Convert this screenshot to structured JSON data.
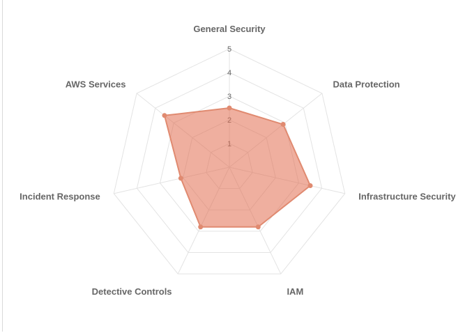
{
  "chart_data": {
    "type": "radar",
    "axes": [
      "General Security",
      "Data Protection",
      "Infrastructure Security",
      "IAM",
      "Detective Controls",
      "Incident Response",
      "AWS Services"
    ],
    "series": [
      {
        "values": [
          2.5,
          2.9,
          3.5,
          2.8,
          2.8,
          2.1,
          3.5
        ]
      }
    ],
    "rlim": [
      0,
      5
    ],
    "ticks": [
      1,
      2,
      3,
      4,
      5
    ],
    "colors": {
      "fill": "rgba(226,110,80,0.55)",
      "stroke": "#e08a70",
      "grid": "#e3e3e3",
      "text": "#666666"
    },
    "grid": true,
    "legend": "none"
  }
}
